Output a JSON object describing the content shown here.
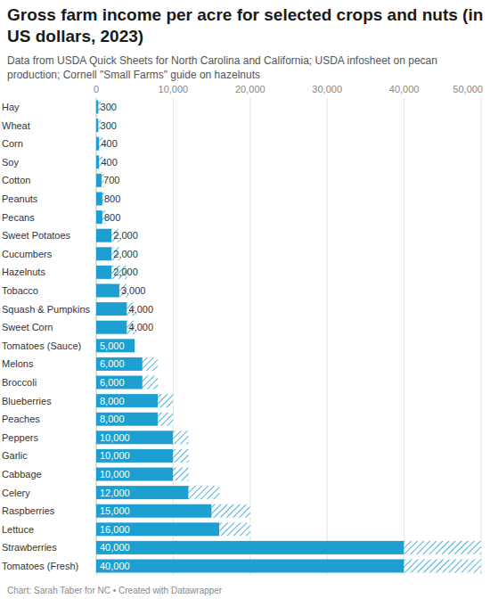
{
  "chart_data": {
    "type": "bar",
    "orientation": "horizontal",
    "stacked": true,
    "title": "Gross farm income per acre for selected crops and nuts (in US dollars, 2023)",
    "subtitle": "Data from USDA Quick Sheets for North Carolina and California; USDA infosheet on pecan production; Cornell \"Small Farms\" guide on hazelnuts",
    "footer": "Chart: Sarah Taber for NC • Created with Datawrapper",
    "categories": [
      "Hay",
      "Wheat",
      "Corn",
      "Soy",
      "Cotton",
      "Peanuts",
      "Pecans",
      "Sweet Potatoes",
      "Cucumbers",
      "Hazelnuts",
      "Tobacco",
      "Squash & Pumpkins",
      "Sweet Corn",
      "Tomatoes (Sauce)",
      "Melons",
      "Broccoli",
      "Blueberries",
      "Peaches",
      "Peppers",
      "Garlic",
      "Cabbage",
      "Celery",
      "Raspberries",
      "Lettuce",
      "Strawberries",
      "Tomatoes (Fresh)"
    ],
    "series": [
      {
        "color": "#1d9fd1",
        "data_labels": true,
        "values": [
          300,
          300,
          400,
          400,
          700,
          800,
          800,
          2000,
          2000,
          2000,
          3000,
          4000,
          4000,
          5000,
          6000,
          6000,
          8000,
          8000,
          10000,
          10000,
          10000,
          12000,
          15000,
          16000,
          40000,
          40000
        ],
        "value_labels": [
          "300",
          "300",
          "400",
          "400",
          "700",
          "800",
          "800",
          "2,000",
          "2,000",
          "2,000",
          "3,000",
          "4,000",
          "4,000",
          "5,000",
          "6,000",
          "6,000",
          "8,000",
          "8,000",
          "10,000",
          "10,000",
          "10,000",
          "12,000",
          "15,000",
          "16,000",
          "40,000",
          "40,000"
        ]
      },
      {
        "color": "#1d9fd1",
        "data_labels": false,
        "values": [
          300,
          300,
          400,
          400,
          300,
          200,
          400,
          1000,
          1000,
          2000,
          1000,
          1000,
          1000,
          0,
          2000,
          2000,
          2000,
          2000,
          2000,
          2000,
          2000,
          4000,
          5000,
          4000,
          10000,
          10000
        ]
      }
    ],
    "xlim": [
      0,
      50000
    ],
    "xticks": [
      0,
      {
        "value": 10000,
        "label": "10,000"
      },
      {
        "value": 20000,
        "label": "20,000"
      },
      {
        "value": 30000,
        "label": "30,000"
      },
      {
        "value": 40000,
        "label": "40,000"
      },
      {
        "value": 50000,
        "label": "50,000"
      }
    ],
    "grid": true
  }
}
